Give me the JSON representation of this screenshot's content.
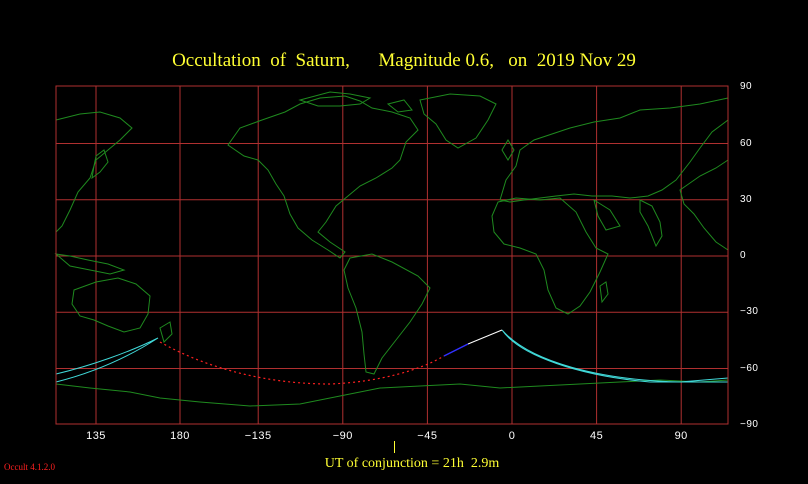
{
  "title": "Occultation  of  Saturn,      Magnitude 0.6,   on  2019 Nov 29",
  "conjunction_label": "UT of conjunction = 21h  2.9m",
  "version": "Occult 4.1.2.0",
  "latitude_ticks": [
    {
      "value": 90,
      "label": "90"
    },
    {
      "value": 60,
      "label": "60"
    },
    {
      "value": 30,
      "label": "30"
    },
    {
      "value": 0,
      "label": "0"
    },
    {
      "value": -30,
      "label": "−30"
    },
    {
      "value": -60,
      "label": "−60"
    },
    {
      "value": -90,
      "label": "−90"
    }
  ],
  "longitude_ticks": [
    {
      "value": 135,
      "label": "135"
    },
    {
      "value": 180,
      "label": "180"
    },
    {
      "value": -135,
      "label": "−135"
    },
    {
      "value": -90,
      "label": "−90"
    },
    {
      "value": -45,
      "label": "−45"
    },
    {
      "value": 0,
      "label": "0"
    },
    {
      "value": 45,
      "label": "45"
    },
    {
      "value": 90,
      "label": "90"
    }
  ],
  "colors": {
    "background": "#000000",
    "grid": "#b03030",
    "coastline": "#1f8a1f",
    "title": "#ffff33",
    "visibility_curve": "#40d8d8",
    "path_night": "#ff2020",
    "path_daylight": "#ffffff",
    "path_twilight": "#3030ff",
    "version": "#ff2020"
  }
}
